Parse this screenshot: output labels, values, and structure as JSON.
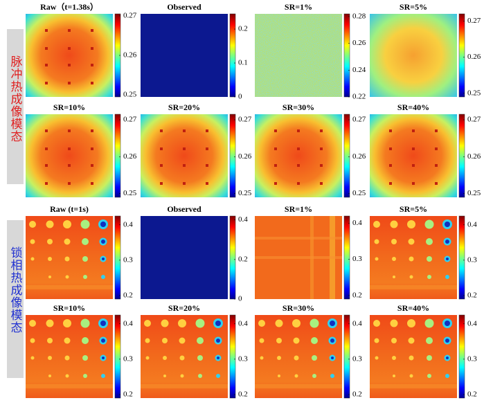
{
  "side_labels": [
    "脉冲热成像模态",
    "锁相热成像模态"
  ],
  "panels": [
    {
      "title": "Raw（t=1.38s）",
      "colorbar": {
        "lim": [
          0.2495,
          0.2705
        ],
        "ticks": [
          0.25,
          0.26,
          0.27
        ]
      }
    },
    {
      "title": "Observed",
      "colorbar": {
        "lim": [
          0,
          0.245
        ],
        "ticks": [
          0,
          0.1,
          0.2
        ]
      }
    },
    {
      "title": "SR=1%",
      "colorbar": {
        "lim": [
          0.22,
          0.282
        ],
        "ticks": [
          0.22,
          0.24,
          0.26,
          0.28
        ]
      }
    },
    {
      "title": "SR=5%",
      "colorbar": {
        "lim": [
          0.249,
          0.272
        ],
        "ticks": [
          0.25,
          0.26,
          0.27
        ]
      }
    },
    {
      "title": "SR=10%",
      "colorbar": {
        "lim": [
          0.249,
          0.2715
        ],
        "ticks": [
          0.25,
          0.26,
          0.27
        ]
      }
    },
    {
      "title": "SR=20%",
      "colorbar": {
        "lim": [
          0.249,
          0.2715
        ],
        "ticks": [
          0.25,
          0.26,
          0.27
        ]
      }
    },
    {
      "title": "SR=30%",
      "colorbar": {
        "lim": [
          0.249,
          0.2715
        ],
        "ticks": [
          0.25,
          0.26,
          0.27
        ]
      }
    },
    {
      "title": "SR=40%",
      "colorbar": {
        "lim": [
          0.249,
          0.2715
        ],
        "ticks": [
          0.25,
          0.26,
          0.27
        ]
      }
    },
    {
      "title": "Raw (t=1s)",
      "colorbar": {
        "lim": [
          0.19,
          0.425
        ],
        "ticks": [
          0.2,
          0.3,
          0.4
        ]
      }
    },
    {
      "title": "Observed",
      "colorbar": {
        "lim": [
          0,
          0.42
        ],
        "ticks": [
          0,
          0.2,
          0.4
        ]
      }
    },
    {
      "title": "SR=1%",
      "colorbar": {
        "lim": [
          0.19,
          0.42
        ],
        "ticks": [
          0.2,
          0.3,
          0.4
        ]
      }
    },
    {
      "title": "SR=5%",
      "colorbar": {
        "lim": [
          0.19,
          0.425
        ],
        "ticks": [
          0.2,
          0.3,
          0.4
        ]
      }
    },
    {
      "title": "SR=10%",
      "colorbar": {
        "lim": [
          0.19,
          0.425
        ],
        "ticks": [
          0.2,
          0.3,
          0.4
        ]
      }
    },
    {
      "title": "SR=20%",
      "colorbar": {
        "lim": [
          0.19,
          0.425
        ],
        "ticks": [
          0.2,
          0.3,
          0.4
        ]
      }
    },
    {
      "title": "SR=30%",
      "colorbar": {
        "lim": [
          0.19,
          0.425
        ],
        "ticks": [
          0.2,
          0.3,
          0.4
        ]
      }
    },
    {
      "title": "SR=40%",
      "colorbar": {
        "lim": [
          0.19,
          0.425
        ],
        "ticks": [
          0.2,
          0.3,
          0.4
        ]
      }
    }
  ]
}
